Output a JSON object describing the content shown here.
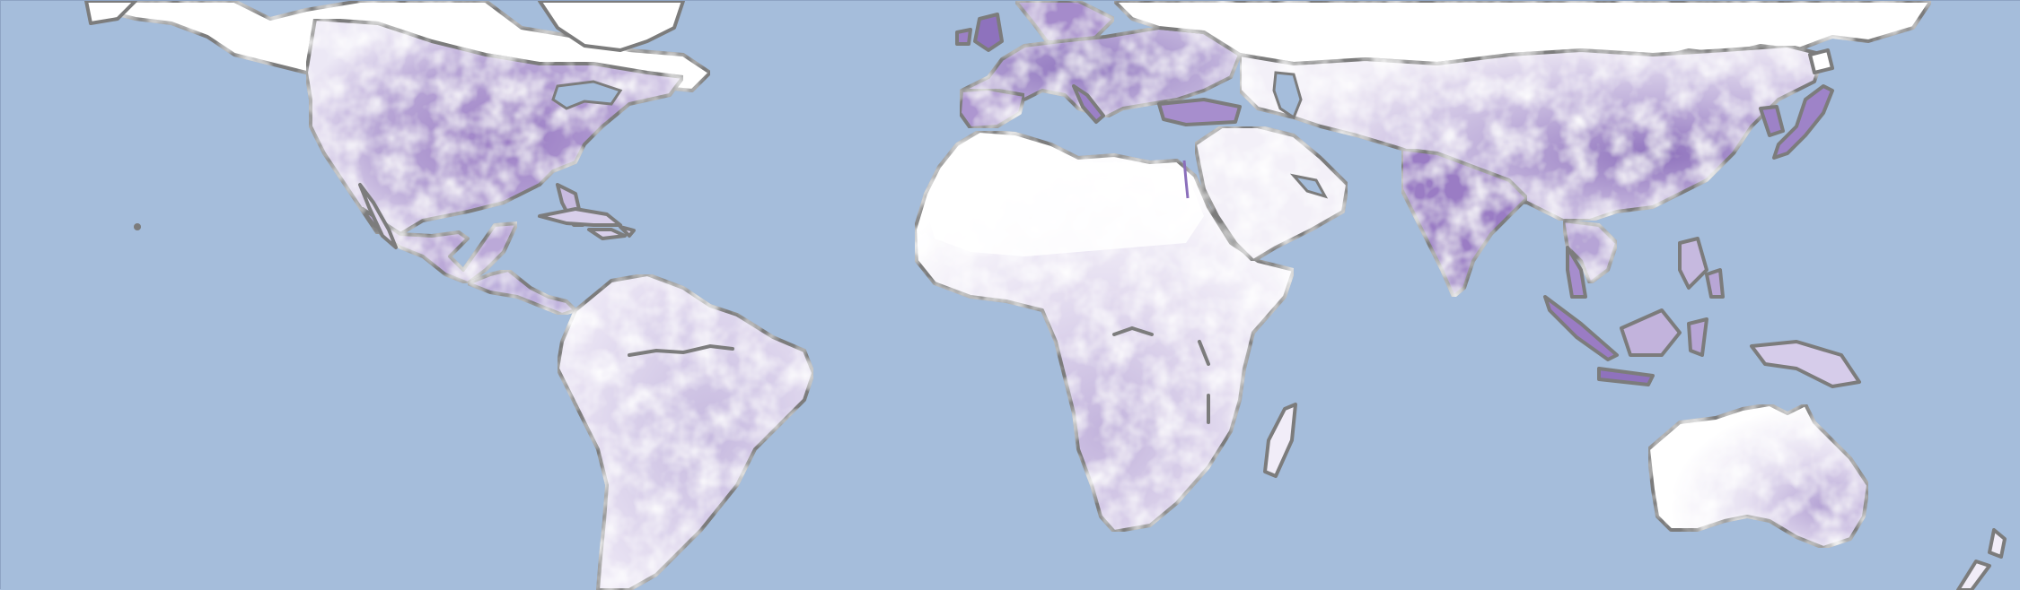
{
  "map": {
    "projection": "equirectangular-world",
    "colors": {
      "ocean": "#a5bddb",
      "coastline": "#7c7c7c",
      "scale_low": "#ffffff",
      "scale_mid": "#c9bde0",
      "scale_high": "#9a7cc4",
      "scale_max": "#6d4fa3"
    },
    "regions": [
      {
        "name": "north-america",
        "intensity": 0.55
      },
      {
        "name": "greenland",
        "intensity": 0.0
      },
      {
        "name": "central-america",
        "intensity": 0.45
      },
      {
        "name": "caribbean",
        "intensity": 0.3
      },
      {
        "name": "south-america",
        "intensity": 0.25
      },
      {
        "name": "europe",
        "intensity": 0.7
      },
      {
        "name": "africa",
        "intensity": 0.15
      },
      {
        "name": "madagascar",
        "intensity": 0.1
      },
      {
        "name": "middle-east",
        "intensity": 0.1
      },
      {
        "name": "asia",
        "intensity": 0.45
      },
      {
        "name": "india",
        "intensity": 0.7
      },
      {
        "name": "east-china",
        "intensity": 0.75
      },
      {
        "name": "japan",
        "intensity": 0.6
      },
      {
        "name": "southeast-asia",
        "intensity": 0.5
      },
      {
        "name": "indonesia",
        "intensity": 0.55
      },
      {
        "name": "new-guinea",
        "intensity": 0.3
      },
      {
        "name": "australia",
        "intensity": 0.15
      },
      {
        "name": "new-zealand",
        "intensity": 0.1
      }
    ]
  }
}
